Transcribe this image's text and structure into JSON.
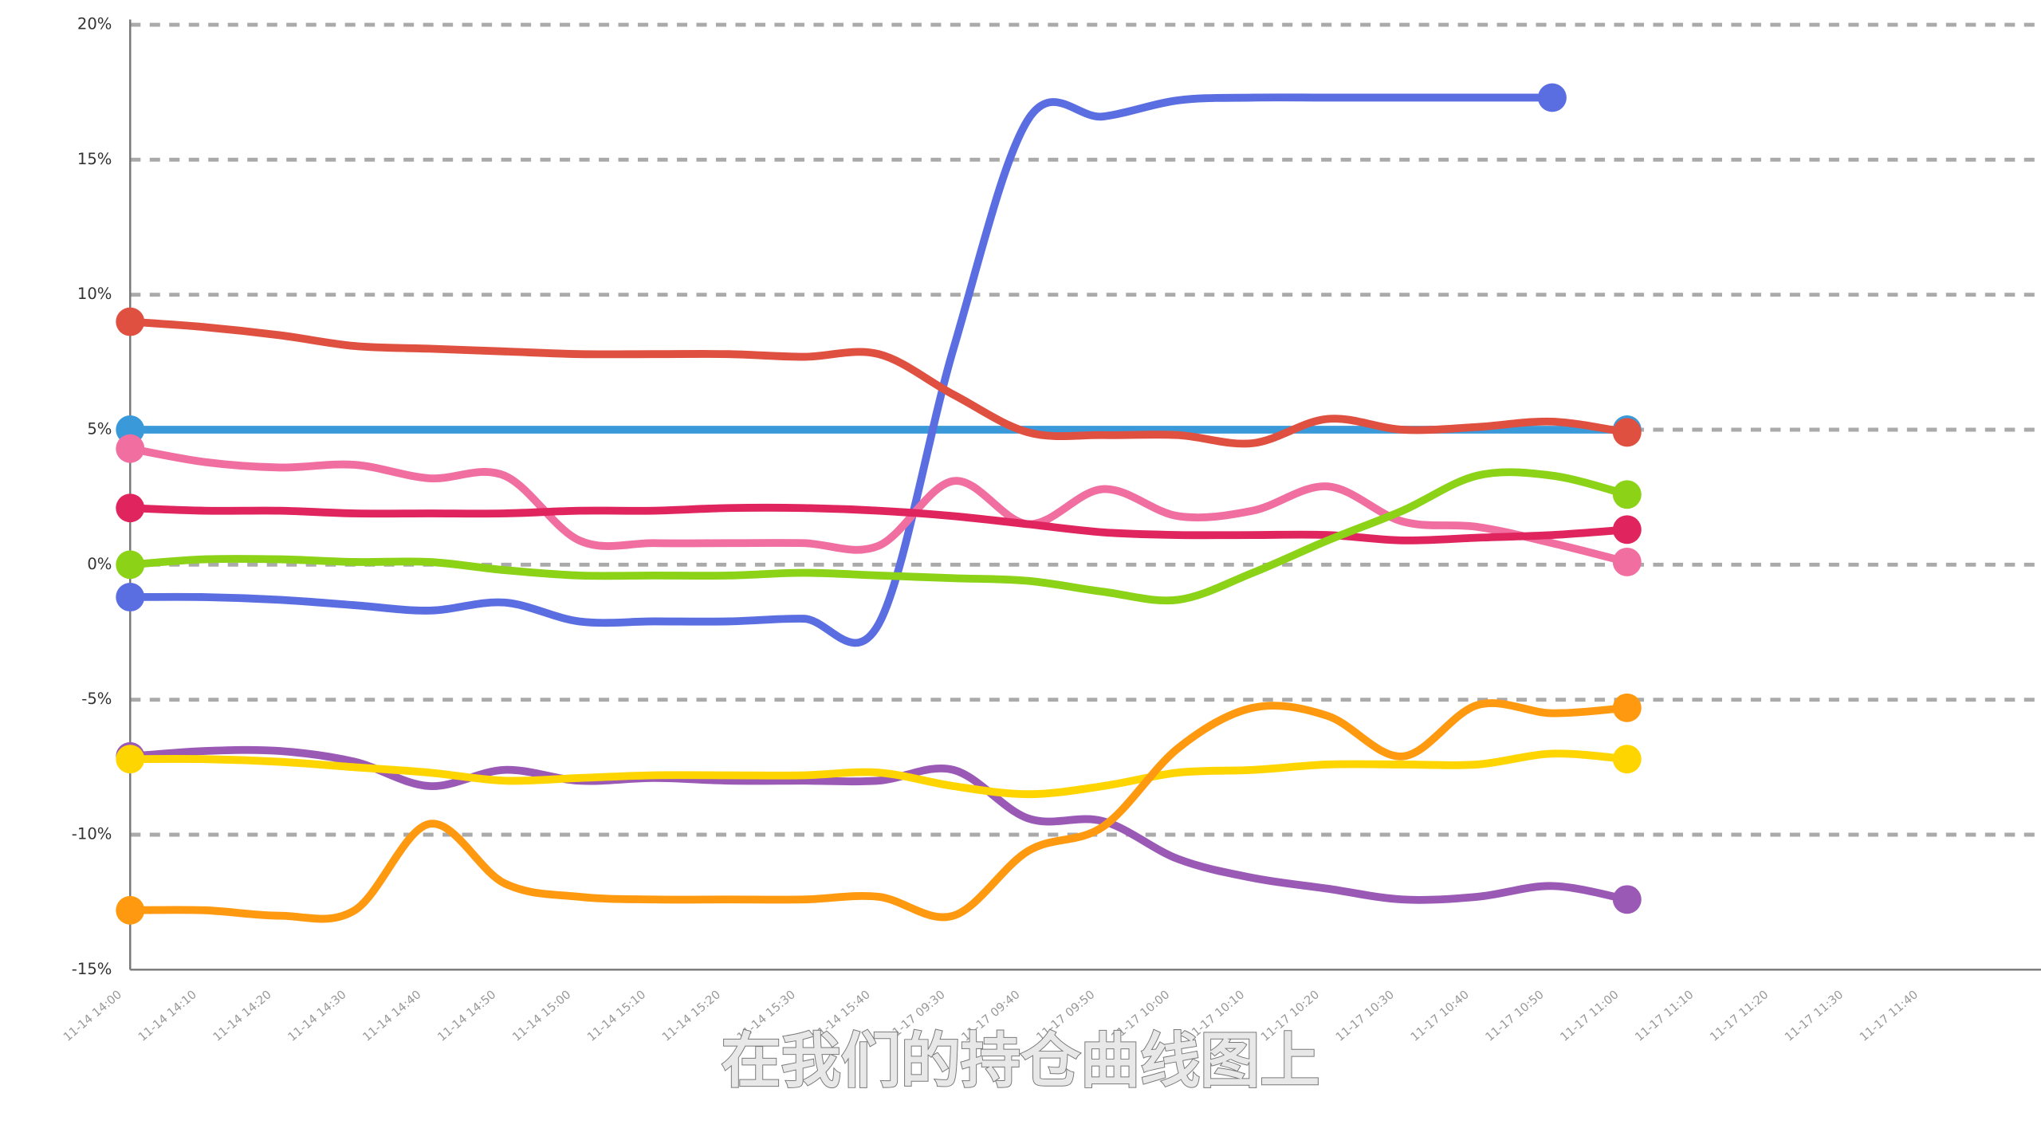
{
  "chart_data": {
    "type": "line",
    "caption": "在我们的持仓曲线图上",
    "categories": [
      "11-14 14:00",
      "11-14 14:10",
      "11-14 14:20",
      "11-14 14:30",
      "11-14 14:40",
      "11-14 14:50",
      "11-14 15:00",
      "11-14 15:10",
      "11-14 15:20",
      "11-14 15:30",
      "11-14 15:40",
      "11-17 09:30",
      "11-17 09:40",
      "11-17 09:50",
      "11-17 10:00",
      "11-17 10:10",
      "11-17 10:20",
      "11-17 10:30",
      "11-17 10:40",
      "11-17 10:50",
      "11-17 11:00",
      "11-17 11:10",
      "11-17 11:20",
      "11-17 11:30",
      "11-17 11:40"
    ],
    "ylim": [
      -15,
      20
    ],
    "yticks": [
      {
        "value": -15,
        "label": "-15%"
      },
      {
        "value": -10,
        "label": "-10%"
      },
      {
        "value": -5,
        "label": "-5%"
      },
      {
        "value": 0,
        "label": "0%"
      },
      {
        "value": 5,
        "label": "5%"
      },
      {
        "value": 10,
        "label": "10%"
      },
      {
        "value": 15,
        "label": "15%"
      },
      {
        "value": 20,
        "label": "20%"
      }
    ],
    "grid": true,
    "series": [
      {
        "color": "#3a9ad9",
        "values": [
          5,
          5,
          5,
          5,
          5,
          5,
          5,
          5,
          5,
          5,
          5,
          5,
          5,
          5,
          5,
          5,
          5,
          5,
          5,
          5,
          5,
          null,
          null,
          null,
          null
        ]
      },
      {
        "color": "#5b6ee1",
        "values": [
          -1.2,
          -1.2,
          -1.3,
          -1.5,
          -1.7,
          -1.4,
          -2.1,
          -2.1,
          -2.1,
          -2.0,
          -2.2,
          8,
          16.5,
          16.6,
          17.2,
          17.3,
          17.3,
          17.3,
          17.3,
          17.3,
          null,
          null,
          null,
          null,
          null
        ]
      },
      {
        "color": "#e05040",
        "values": [
          9.0,
          8.8,
          8.5,
          8.1,
          8.0,
          7.9,
          7.8,
          7.8,
          7.8,
          7.7,
          7.8,
          6.3,
          4.9,
          4.8,
          4.8,
          4.5,
          5.4,
          5.0,
          5.1,
          5.3,
          4.9,
          null,
          null,
          null,
          null
        ]
      },
      {
        "color": "#f06ea0",
        "values": [
          4.3,
          3.8,
          3.6,
          3.7,
          3.2,
          3.3,
          0.9,
          0.8,
          0.8,
          0.8,
          0.7,
          3.1,
          1.5,
          2.8,
          1.8,
          2.0,
          2.9,
          1.6,
          1.4,
          0.8,
          0.1,
          null,
          null,
          null,
          null
        ]
      },
      {
        "color": "#e0245e",
        "values": [
          2.1,
          2.0,
          2.0,
          1.9,
          1.9,
          1.9,
          2.0,
          2.0,
          2.1,
          2.1,
          2.0,
          1.8,
          1.5,
          1.2,
          1.1,
          1.1,
          1.1,
          0.9,
          1.0,
          1.1,
          1.3,
          null,
          null,
          null,
          null
        ]
      },
      {
        "color": "#8cd317",
        "values": [
          0,
          0.2,
          0.2,
          0.1,
          0.1,
          -0.2,
          -0.4,
          -0.4,
          -0.4,
          -0.3,
          -0.4,
          -0.5,
          -0.6,
          -1.0,
          -1.3,
          -0.3,
          0.9,
          2.0,
          3.3,
          3.3,
          2.6,
          null,
          null,
          null,
          null
        ]
      },
      {
        "color": "#9b59b6",
        "values": [
          -7.1,
          -6.9,
          -6.9,
          -7.3,
          -8.2,
          -7.6,
          -8.0,
          -7.9,
          -8.0,
          -8.0,
          -8.0,
          -7.6,
          -9.4,
          -9.5,
          -10.9,
          -11.6,
          -12.0,
          -12.4,
          -12.3,
          -11.9,
          -12.4,
          null,
          null,
          null,
          null
        ]
      },
      {
        "color": "#ffd500",
        "values": [
          -7.2,
          -7.2,
          -7.3,
          -7.5,
          -7.7,
          -8.0,
          -7.9,
          -7.8,
          -7.8,
          -7.8,
          -7.7,
          -8.2,
          -8.5,
          -8.2,
          -7.7,
          -7.6,
          -7.4,
          -7.4,
          -7.4,
          -7.0,
          -7.2,
          null,
          null,
          null,
          null
        ]
      },
      {
        "color": "#ff9a10",
        "values": [
          -12.8,
          -12.8,
          -13.0,
          -12.8,
          -9.6,
          -11.8,
          -12.3,
          -12.4,
          -12.4,
          -12.4,
          -12.3,
          -13.0,
          -10.6,
          -9.7,
          -6.8,
          -5.3,
          -5.6,
          -7.1,
          -5.2,
          -5.5,
          -5.3,
          null,
          null,
          null,
          null
        ]
      }
    ]
  }
}
